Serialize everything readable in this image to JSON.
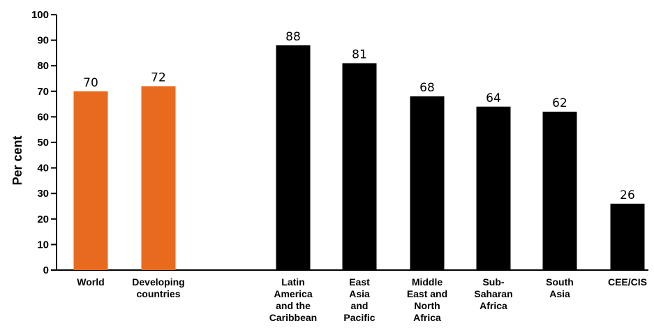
{
  "chart_data": {
    "type": "bar",
    "categories": [
      [
        "World"
      ],
      [
        "Developing",
        "countries"
      ],
      [
        "Latin",
        "America",
        "and the",
        "Caribbean"
      ],
      [
        "East",
        "Asia",
        "and",
        "Pacific"
      ],
      [
        "Middle",
        "East and",
        "North",
        "Africa"
      ],
      [
        "Sub-",
        "Saharan",
        "Africa"
      ],
      [
        "South",
        "Asia"
      ],
      [
        "CEE/CIS"
      ]
    ],
    "values": [
      70,
      72,
      88,
      81,
      68,
      64,
      62,
      26
    ],
    "value_labels": [
      "70",
      "72",
      "88",
      "81",
      "68",
      "64",
      "62",
      "26"
    ],
    "bar_colors": [
      "#E86A1F",
      "#E86A1F",
      "#000000",
      "#000000",
      "#000000",
      "#000000",
      "#000000",
      "#000000"
    ],
    "ylabel": "Per cent",
    "ylim": [
      0,
      100
    ],
    "yticks": [
      "0",
      "10",
      "20",
      "30",
      "40",
      "50",
      "60",
      "70",
      "80",
      "90",
      "100"
    ],
    "grid": false,
    "legend": "none"
  }
}
